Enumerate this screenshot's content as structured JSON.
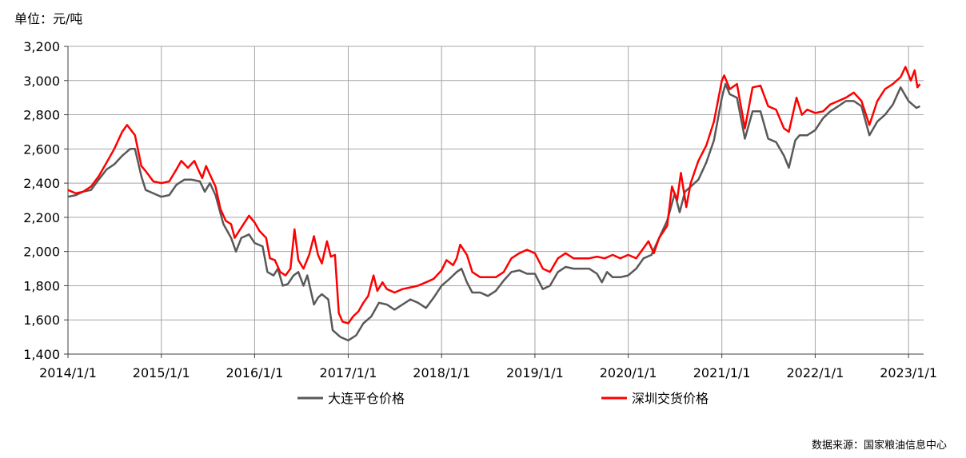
{
  "unit_label": "单位：元/吨",
  "source_label": "数据来源：国家粮油信息中心",
  "chart_data": {
    "type": "line",
    "x_type": "date",
    "xlim": [
      "2014/1/1",
      "2023/3/1"
    ],
    "ylim": [
      1400,
      3200
    ],
    "y_ticks": [
      1400,
      1600,
      1800,
      2000,
      2200,
      2400,
      2600,
      2800,
      3000,
      3200
    ],
    "y_tick_labels": [
      "1,400",
      "1,600",
      "1,800",
      "2,000",
      "2,200",
      "2,400",
      "2,600",
      "2,800",
      "3,000",
      "3,200"
    ],
    "x_ticks": [
      "2014/1/1",
      "2015/1/1",
      "2016/1/1",
      "2017/1/1",
      "2018/1/1",
      "2019/1/1",
      "2020/1/1",
      "2021/1/1",
      "2022/1/1",
      "2023/1/1"
    ],
    "grid": true,
    "legend_position": "bottom",
    "series": [
      {
        "name": "大连平仓价格",
        "color": "#595959",
        "points": [
          [
            "2014/1/1",
            2320
          ],
          [
            "2014/2/1",
            2330
          ],
          [
            "2014/3/1",
            2350
          ],
          [
            "2014/4/1",
            2360
          ],
          [
            "2014/5/1",
            2420
          ],
          [
            "2014/6/1",
            2480
          ],
          [
            "2014/7/1",
            2510
          ],
          [
            "2014/8/1",
            2560
          ],
          [
            "2014/9/1",
            2600
          ],
          [
            "2014/9/20",
            2600
          ],
          [
            "2014/10/15",
            2440
          ],
          [
            "2014/11/1",
            2360
          ],
          [
            "2014/12/1",
            2340
          ],
          [
            "2015/1/1",
            2320
          ],
          [
            "2015/2/1",
            2330
          ],
          [
            "2015/3/1",
            2390
          ],
          [
            "2015/4/1",
            2420
          ],
          [
            "2015/5/1",
            2420
          ],
          [
            "2015/6/1",
            2410
          ],
          [
            "2015/6/20",
            2350
          ],
          [
            "2015/7/10",
            2400
          ],
          [
            "2015/8/1",
            2330
          ],
          [
            "2015/9/1",
            2160
          ],
          [
            "2015/10/1",
            2080
          ],
          [
            "2015/10/20",
            2000
          ],
          [
            "2015/11/10",
            2080
          ],
          [
            "2015/12/10",
            2100
          ],
          [
            "2016/1/1",
            2050
          ],
          [
            "2016/2/1",
            2030
          ],
          [
            "2016/2/20",
            1880
          ],
          [
            "2016/3/15",
            1860
          ],
          [
            "2016/4/1",
            1900
          ],
          [
            "2016/4/20",
            1800
          ],
          [
            "2016/5/10",
            1810
          ],
          [
            "2016/6/1",
            1860
          ],
          [
            "2016/6/20",
            1880
          ],
          [
            "2016/7/10",
            1800
          ],
          [
            "2016/7/25",
            1860
          ],
          [
            "2016/8/20",
            1690
          ],
          [
            "2016/9/5",
            1730
          ],
          [
            "2016/9/20",
            1750
          ],
          [
            "2016/10/15",
            1720
          ],
          [
            "2016/11/1",
            1540
          ],
          [
            "2016/12/1",
            1500
          ],
          [
            "2017/1/1",
            1480
          ],
          [
            "2017/2/1",
            1510
          ],
          [
            "2017/3/1",
            1580
          ],
          [
            "2017/4/1",
            1620
          ],
          [
            "2017/5/1",
            1700
          ],
          [
            "2017/6/1",
            1690
          ],
          [
            "2017/7/1",
            1660
          ],
          [
            "2017/8/1",
            1690
          ],
          [
            "2017/9/1",
            1720
          ],
          [
            "2017/10/1",
            1700
          ],
          [
            "2017/11/1",
            1670
          ],
          [
            "2017/12/1",
            1730
          ],
          [
            "2018/1/1",
            1800
          ],
          [
            "2018/2/1",
            1840
          ],
          [
            "2018/3/1",
            1880
          ],
          [
            "2018/3/20",
            1900
          ],
          [
            "2018/4/10",
            1820
          ],
          [
            "2018/5/1",
            1760
          ],
          [
            "2018/6/1",
            1760
          ],
          [
            "2018/7/1",
            1740
          ],
          [
            "2018/8/1",
            1770
          ],
          [
            "2018/9/1",
            1830
          ],
          [
            "2018/10/1",
            1880
          ],
          [
            "2018/11/1",
            1890
          ],
          [
            "2018/12/1",
            1870
          ],
          [
            "2019/1/1",
            1870
          ],
          [
            "2019/2/1",
            1780
          ],
          [
            "2019/3/1",
            1800
          ],
          [
            "2019/4/1",
            1880
          ],
          [
            "2019/5/1",
            1910
          ],
          [
            "2019/6/1",
            1900
          ],
          [
            "2019/7/1",
            1900
          ],
          [
            "2019/8/1",
            1900
          ],
          [
            "2019/9/1",
            1870
          ],
          [
            "2019/9/20",
            1820
          ],
          [
            "2019/10/10",
            1880
          ],
          [
            "2019/11/1",
            1850
          ],
          [
            "2019/12/1",
            1850
          ],
          [
            "2020/1/1",
            1860
          ],
          [
            "2020/2/1",
            1900
          ],
          [
            "2020/3/1",
            1960
          ],
          [
            "2020/4/1",
            1980
          ],
          [
            "2020/5/1",
            2080
          ],
          [
            "2020/6/1",
            2180
          ],
          [
            "2020/7/1",
            2340
          ],
          [
            "2020/7/20",
            2230
          ],
          [
            "2020/8/10",
            2350
          ],
          [
            "2020/9/1",
            2380
          ],
          [
            "2020/10/1",
            2420
          ],
          [
            "2020/11/1",
            2520
          ],
          [
            "2020/12/1",
            2650
          ],
          [
            "2021/1/1",
            2900
          ],
          [
            "2021/1/15",
            2980
          ],
          [
            "2021/2/1",
            2920
          ],
          [
            "2021/3/1",
            2900
          ],
          [
            "2021/4/1",
            2660
          ],
          [
            "2021/5/1",
            2820
          ],
          [
            "2021/6/1",
            2820
          ],
          [
            "2021/7/1",
            2660
          ],
          [
            "2021/8/1",
            2640
          ],
          [
            "2021/9/1",
            2560
          ],
          [
            "2021/9/20",
            2490
          ],
          [
            "2021/10/15",
            2650
          ],
          [
            "2021/11/1",
            2680
          ],
          [
            "2021/12/1",
            2680
          ],
          [
            "2022/1/1",
            2710
          ],
          [
            "2022/2/1",
            2780
          ],
          [
            "2022/3/1",
            2820
          ],
          [
            "2022/4/1",
            2850
          ],
          [
            "2022/5/1",
            2880
          ],
          [
            "2022/6/1",
            2880
          ],
          [
            "2022/7/1",
            2850
          ],
          [
            "2022/8/1",
            2680
          ],
          [
            "2022/9/1",
            2760
          ],
          [
            "2022/10/1",
            2800
          ],
          [
            "2022/11/1",
            2860
          ],
          [
            "2022/12/1",
            2960
          ],
          [
            "2023/1/1",
            2880
          ],
          [
            "2023/2/1",
            2840
          ],
          [
            "2023/2/15",
            2850
          ]
        ]
      },
      {
        "name": "深圳交货价格",
        "color": "#ff0000",
        "points": [
          [
            "2014/1/1",
            2360
          ],
          [
            "2014/2/1",
            2340
          ],
          [
            "2014/3/1",
            2350
          ],
          [
            "2014/4/1",
            2380
          ],
          [
            "2014/5/1",
            2440
          ],
          [
            "2014/6/1",
            2520
          ],
          [
            "2014/7/1",
            2600
          ],
          [
            "2014/8/1",
            2700
          ],
          [
            "2014/8/20",
            2740
          ],
          [
            "2014/9/20",
            2680
          ],
          [
            "2014/10/15",
            2500
          ],
          [
            "2014/11/1",
            2470
          ],
          [
            "2014/12/1",
            2410
          ],
          [
            "2015/1/1",
            2400
          ],
          [
            "2015/2/1",
            2410
          ],
          [
            "2015/3/1",
            2480
          ],
          [
            "2015/3/20",
            2530
          ],
          [
            "2015/4/15",
            2490
          ],
          [
            "2015/5/10",
            2530
          ],
          [
            "2015/5/25",
            2480
          ],
          [
            "2015/6/10",
            2430
          ],
          [
            "2015/6/25",
            2500
          ],
          [
            "2015/7/10",
            2450
          ],
          [
            "2015/8/1",
            2380
          ],
          [
            "2015/8/20",
            2250
          ],
          [
            "2015/9/10",
            2180
          ],
          [
            "2015/10/1",
            2160
          ],
          [
            "2015/10/15",
            2080
          ],
          [
            "2015/11/10",
            2140
          ],
          [
            "2015/12/10",
            2210
          ],
          [
            "2016/1/1",
            2170
          ],
          [
            "2016/1/20",
            2120
          ],
          [
            "2016/2/15",
            2080
          ],
          [
            "2016/3/1",
            1960
          ],
          [
            "2016/3/20",
            1950
          ],
          [
            "2016/4/10",
            1880
          ],
          [
            "2016/5/1",
            1860
          ],
          [
            "2016/5/20",
            1900
          ],
          [
            "2016/6/5",
            2130
          ],
          [
            "2016/6/20",
            1950
          ],
          [
            "2016/7/10",
            1900
          ],
          [
            "2016/8/1",
            1980
          ],
          [
            "2016/8/20",
            2090
          ],
          [
            "2016/9/5",
            1980
          ],
          [
            "2016/9/20",
            1930
          ],
          [
            "2016/10/10",
            2060
          ],
          [
            "2016/10/25",
            1970
          ],
          [
            "2016/11/10",
            1980
          ],
          [
            "2016/11/25",
            1640
          ],
          [
            "2016/12/10",
            1590
          ],
          [
            "2017/1/1",
            1580
          ],
          [
            "2017/1/20",
            1620
          ],
          [
            "2017/2/10",
            1650
          ],
          [
            "2017/3/1",
            1700
          ],
          [
            "2017/3/20",
            1740
          ],
          [
            "2017/4/10",
            1860
          ],
          [
            "2017/4/25",
            1770
          ],
          [
            "2017/5/15",
            1820
          ],
          [
            "2017/6/1",
            1780
          ],
          [
            "2017/7/1",
            1760
          ],
          [
            "2017/8/1",
            1780
          ],
          [
            "2017/9/1",
            1790
          ],
          [
            "2017/10/1",
            1800
          ],
          [
            "2017/11/1",
            1820
          ],
          [
            "2017/12/1",
            1840
          ],
          [
            "2018/1/1",
            1890
          ],
          [
            "2018/1/20",
            1950
          ],
          [
            "2018/2/15",
            1920
          ],
          [
            "2018/3/1",
            1960
          ],
          [
            "2018/3/15",
            2040
          ],
          [
            "2018/4/10",
            1980
          ],
          [
            "2018/5/1",
            1880
          ],
          [
            "2018/6/1",
            1850
          ],
          [
            "2018/7/1",
            1850
          ],
          [
            "2018/8/1",
            1850
          ],
          [
            "2018/9/1",
            1880
          ],
          [
            "2018/10/1",
            1960
          ],
          [
            "2018/11/1",
            1990
          ],
          [
            "2018/12/1",
            2010
          ],
          [
            "2019/1/1",
            1990
          ],
          [
            "2019/2/1",
            1900
          ],
          [
            "2019/3/1",
            1880
          ],
          [
            "2019/4/1",
            1960
          ],
          [
            "2019/5/1",
            1990
          ],
          [
            "2019/6/1",
            1960
          ],
          [
            "2019/7/1",
            1960
          ],
          [
            "2019/8/1",
            1960
          ],
          [
            "2019/9/1",
            1970
          ],
          [
            "2019/10/1",
            1960
          ],
          [
            "2019/11/1",
            1980
          ],
          [
            "2019/12/1",
            1960
          ],
          [
            "2020/1/1",
            1980
          ],
          [
            "2020/2/1",
            1960
          ],
          [
            "2020/3/1",
            2020
          ],
          [
            "2020/3/20",
            2060
          ],
          [
            "2020/4/10",
            1990
          ],
          [
            "2020/5/1",
            2080
          ],
          [
            "2020/6/1",
            2150
          ],
          [
            "2020/6/20",
            2380
          ],
          [
            "2020/7/10",
            2300
          ],
          [
            "2020/7/25",
            2460
          ],
          [
            "2020/8/15",
            2260
          ],
          [
            "2020/9/1",
            2400
          ],
          [
            "2020/10/1",
            2530
          ],
          [
            "2020/11/1",
            2620
          ],
          [
            "2020/12/1",
            2760
          ],
          [
            "2021/1/1",
            3000
          ],
          [
            "2021/1/10",
            3030
          ],
          [
            "2021/2/1",
            2950
          ],
          [
            "2021/3/1",
            2980
          ],
          [
            "2021/4/1",
            2720
          ],
          [
            "2021/5/1",
            2960
          ],
          [
            "2021/6/1",
            2970
          ],
          [
            "2021/7/1",
            2850
          ],
          [
            "2021/8/1",
            2830
          ],
          [
            "2021/9/1",
            2720
          ],
          [
            "2021/9/20",
            2700
          ],
          [
            "2021/10/20",
            2900
          ],
          [
            "2021/11/10",
            2800
          ],
          [
            "2021/12/1",
            2830
          ],
          [
            "2022/1/1",
            2810
          ],
          [
            "2022/2/1",
            2820
          ],
          [
            "2022/3/1",
            2860
          ],
          [
            "2022/4/1",
            2880
          ],
          [
            "2022/5/1",
            2900
          ],
          [
            "2022/6/1",
            2930
          ],
          [
            "2022/7/1",
            2880
          ],
          [
            "2022/8/1",
            2740
          ],
          [
            "2022/9/1",
            2880
          ],
          [
            "2022/10/1",
            2950
          ],
          [
            "2022/11/1",
            2980
          ],
          [
            "2022/12/1",
            3020
          ],
          [
            "2022/12/20",
            3080
          ],
          [
            "2023/1/10",
            3000
          ],
          [
            "2023/1/25",
            3060
          ],
          [
            "2023/2/5",
            2960
          ],
          [
            "2023/2/15",
            2980
          ]
        ]
      }
    ]
  }
}
